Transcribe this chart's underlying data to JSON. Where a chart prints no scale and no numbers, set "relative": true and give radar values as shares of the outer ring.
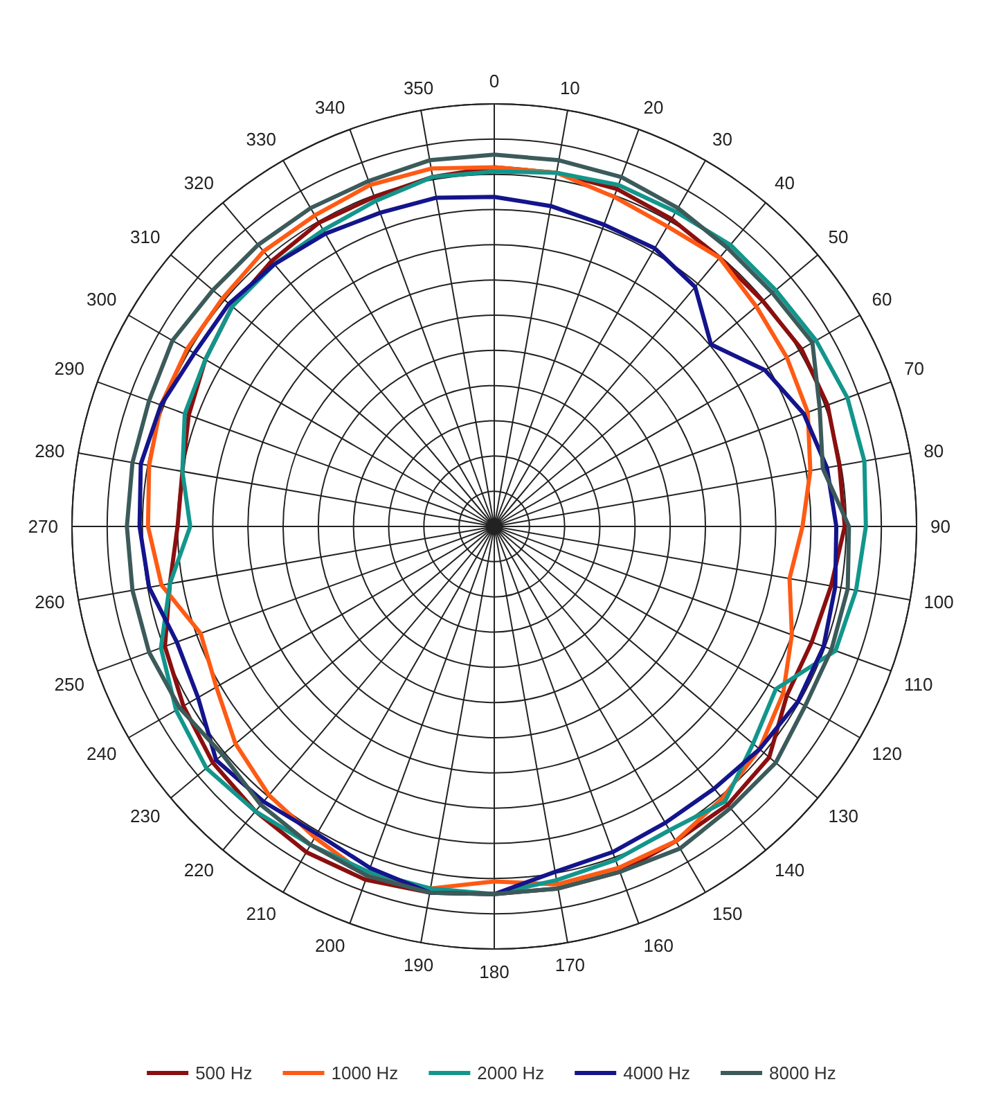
{
  "chart_data": {
    "type": "radar",
    "relative": true,
    "legend": "bottom",
    "marker": "none",
    "line_style": "solid",
    "categories": [
      "0",
      "10",
      "20",
      "30",
      "40",
      "50",
      "60",
      "70",
      "80",
      "90",
      "100",
      "110",
      "120",
      "130",
      "140",
      "150",
      "160",
      "170",
      "180",
      "190",
      "200",
      "210",
      "220",
      "230",
      "240",
      "250",
      "260",
      "270",
      "280",
      "290",
      "300",
      "310",
      "320",
      "330",
      "340",
      "350"
    ],
    "series": [
      {
        "name": "500 Hz",
        "color": "#8b0f0f",
        "values": [
          0.85,
          0.85,
          0.85,
          0.84,
          0.83,
          0.83,
          0.84,
          0.84,
          0.83,
          0.83,
          0.81,
          0.8,
          0.8,
          0.85,
          0.86,
          0.86,
          0.87,
          0.87,
          0.87,
          0.88,
          0.89,
          0.89,
          0.88,
          0.87,
          0.85,
          0.83,
          0.78,
          0.75,
          0.75,
          0.77,
          0.79,
          0.81,
          0.82,
          0.83,
          0.83,
          0.84
        ]
      },
      {
        "name": "1000 Hz",
        "color": "#ff5a14",
        "values": [
          0.85,
          0.85,
          0.83,
          0.82,
          0.83,
          0.81,
          0.8,
          0.79,
          0.76,
          0.73,
          0.71,
          0.75,
          0.79,
          0.82,
          0.84,
          0.86,
          0.86,
          0.86,
          0.84,
          0.87,
          0.88,
          0.85,
          0.83,
          0.8,
          0.76,
          0.74,
          0.8,
          0.82,
          0.83,
          0.84,
          0.84,
          0.84,
          0.85,
          0.85,
          0.86,
          0.86
        ]
      },
      {
        "name": "2000 Hz",
        "color": "#12968c",
        "values": [
          0.84,
          0.85,
          0.86,
          0.86,
          0.87,
          0.87,
          0.88,
          0.89,
          0.89,
          0.88,
          0.87,
          0.86,
          0.77,
          0.8,
          0.85,
          0.83,
          0.84,
          0.85,
          0.87,
          0.87,
          0.87,
          0.87,
          0.88,
          0.89,
          0.87,
          0.84,
          0.78,
          0.72,
          0.75,
          0.78,
          0.79,
          0.81,
          0.81,
          0.81,
          0.82,
          0.84
        ]
      },
      {
        "name": "4000 Hz",
        "color": "#14148c",
        "values": [
          0.78,
          0.77,
          0.76,
          0.76,
          0.74,
          0.67,
          0.74,
          0.78,
          0.8,
          0.81,
          0.82,
          0.83,
          0.83,
          0.82,
          0.81,
          0.81,
          0.82,
          0.83,
          0.87,
          0.88,
          0.86,
          0.84,
          0.85,
          0.86,
          0.81,
          0.8,
          0.83,
          0.84,
          0.85,
          0.84,
          0.82,
          0.82,
          0.81,
          0.8,
          0.79,
          0.79
        ]
      },
      {
        "name": "8000 Hz",
        "color": "#3c5a5a",
        "values": [
          0.88,
          0.88,
          0.88,
          0.87,
          0.86,
          0.86,
          0.87,
          0.82,
          0.79,
          0.84,
          0.85,
          0.85,
          0.85,
          0.87,
          0.87,
          0.88,
          0.87,
          0.87,
          0.87,
          0.88,
          0.88,
          0.87,
          0.86,
          0.84,
          0.86,
          0.87,
          0.87,
          0.87,
          0.87,
          0.87,
          0.88,
          0.87,
          0.87,
          0.87,
          0.87,
          0.88
        ]
      }
    ]
  }
}
